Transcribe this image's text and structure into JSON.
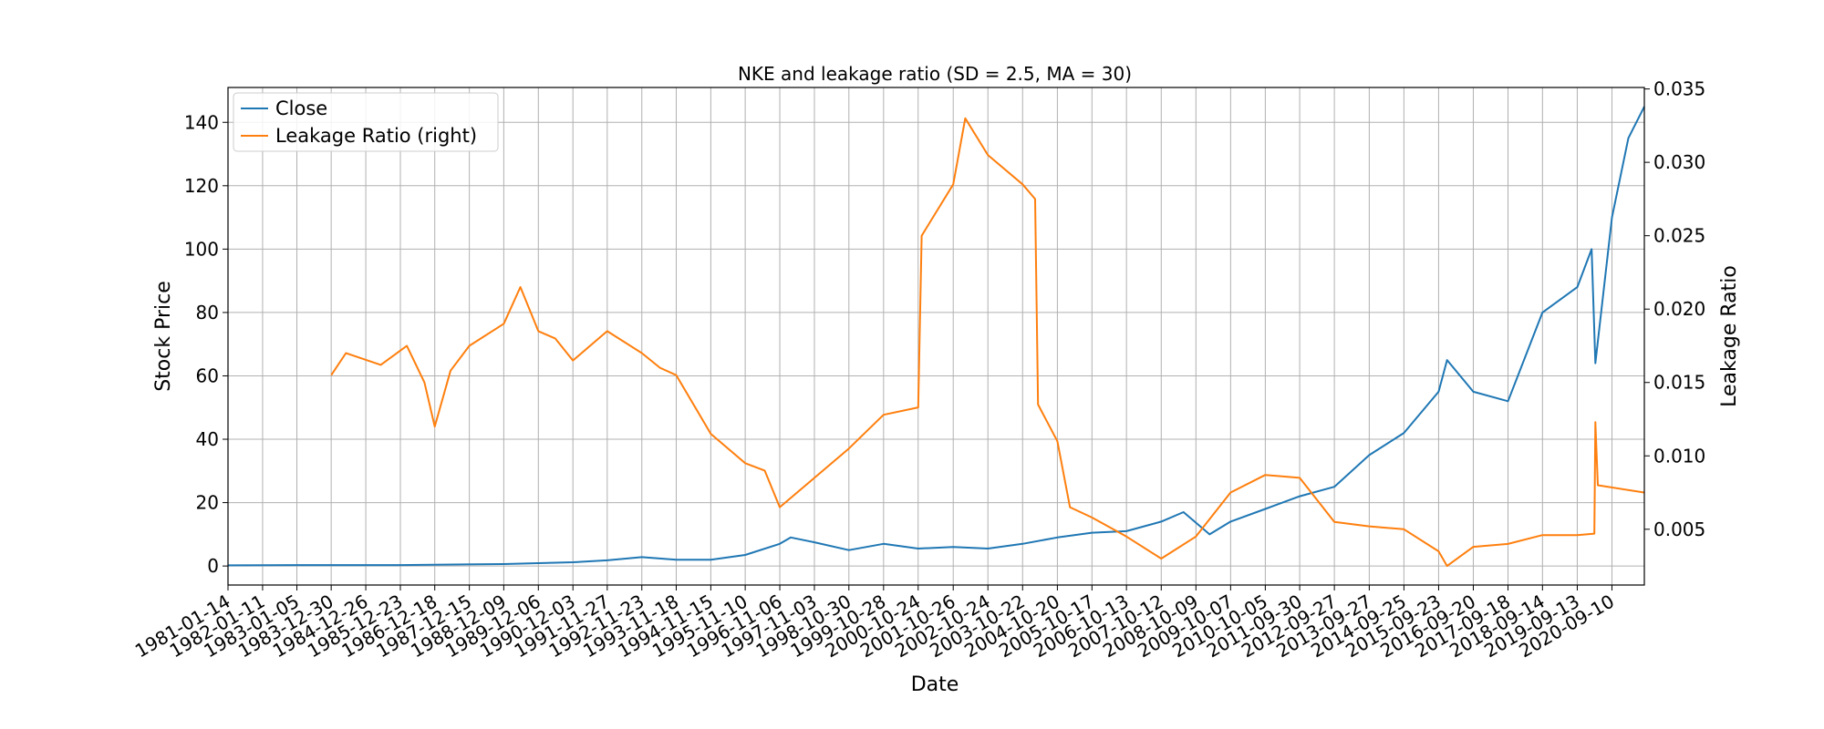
{
  "chart_data": {
    "type": "line",
    "title": "NKE and leakage ratio (SD = 2.5, MA = 30)",
    "xlabel": "Date",
    "ylabel": "Stock Price",
    "ylabel_right": "Leakage Ratio",
    "x_ticks": [
      "1981-01-14",
      "1982-01-11",
      "1983-01-05",
      "1983-12-30",
      "1984-12-26",
      "1985-12-23",
      "1986-12-18",
      "1987-12-15",
      "1988-12-09",
      "1989-12-06",
      "1990-12-03",
      "1991-11-27",
      "1992-11-23",
      "1993-11-18",
      "1994-11-15",
      "1995-11-10",
      "1996-11-06",
      "1997-11-03",
      "1998-10-30",
      "1999-10-28",
      "2000-10-24",
      "2001-10-26",
      "2002-10-24",
      "2003-10-22",
      "2004-10-20",
      "2005-10-17",
      "2006-10-13",
      "2007-10-12",
      "2008-10-09",
      "2009-10-07",
      "2010-10-05",
      "2011-09-30",
      "2012-09-27",
      "2013-09-27",
      "2014-09-25",
      "2015-09-23",
      "2016-09-20",
      "2017-09-18",
      "2018-09-14",
      "2019-09-13",
      "2020-09-10"
    ],
    "xlim": [
      "1981-01-14",
      "2021-08-15"
    ],
    "ylim": [
      -6,
      151
    ],
    "yticks": [
      0,
      20,
      40,
      60,
      80,
      100,
      120,
      140
    ],
    "ylim_right": [
      0.0012,
      0.0351
    ],
    "yticks_right": [
      "0.005",
      "0.010",
      "0.015",
      "0.020",
      "0.025",
      "0.030",
      "0.035"
    ],
    "grid": true,
    "legend_position": "upper-left",
    "series": [
      {
        "name": "Close",
        "axis": "left",
        "color": "#1f77b4",
        "points": [
          [
            "1981-01-14",
            0.2
          ],
          [
            "1983-01-05",
            0.3
          ],
          [
            "1985-12-23",
            0.3
          ],
          [
            "1988-12-09",
            0.6
          ],
          [
            "1990-12-03",
            1.2
          ],
          [
            "1991-11-27",
            1.8
          ],
          [
            "1992-11-23",
            2.8
          ],
          [
            "1993-11-18",
            2.0
          ],
          [
            "1994-11-15",
            2.0
          ],
          [
            "1995-11-10",
            3.5
          ],
          [
            "1996-11-06",
            7.0
          ],
          [
            "1997-03-01",
            9.0
          ],
          [
            "1997-11-03",
            7.5
          ],
          [
            "1998-10-30",
            5.0
          ],
          [
            "1999-10-28",
            7.0
          ],
          [
            "2000-10-24",
            5.5
          ],
          [
            "2001-10-26",
            6.0
          ],
          [
            "2002-10-24",
            5.5
          ],
          [
            "2003-10-22",
            7.0
          ],
          [
            "2004-10-20",
            9.0
          ],
          [
            "2005-10-17",
            10.5
          ],
          [
            "2006-10-13",
            11.0
          ],
          [
            "2007-10-12",
            14.0
          ],
          [
            "2008-06-01",
            17.0
          ],
          [
            "2009-03-01",
            10.0
          ],
          [
            "2009-10-07",
            14.0
          ],
          [
            "2010-10-05",
            18.0
          ],
          [
            "2011-09-30",
            22.0
          ],
          [
            "2012-09-27",
            25.0
          ],
          [
            "2013-09-27",
            35.0
          ],
          [
            "2014-09-25",
            42.0
          ],
          [
            "2015-09-23",
            55.0
          ],
          [
            "2015-12-20",
            65.0
          ],
          [
            "2016-09-20",
            55.0
          ],
          [
            "2017-09-18",
            52.0
          ],
          [
            "2018-09-14",
            80.0
          ],
          [
            "2019-09-13",
            88.0
          ],
          [
            "2020-02-10",
            100.0
          ],
          [
            "2020-03-20",
            64.0
          ],
          [
            "2020-09-10",
            110.0
          ],
          [
            "2021-03-01",
            135.0
          ],
          [
            "2021-08-15",
            145.0
          ]
        ]
      },
      {
        "name": "Leakage Ratio (right)",
        "axis": "right",
        "color": "#ff7f0e",
        "points": [
          [
            "1983-12-30",
            0.0155
          ],
          [
            "1984-06-01",
            0.017
          ],
          [
            "1985-06-01",
            0.0162
          ],
          [
            "1986-03-01",
            0.0175
          ],
          [
            "1986-09-01",
            0.015
          ],
          [
            "1986-12-18",
            0.012
          ],
          [
            "1987-06-01",
            0.0158
          ],
          [
            "1987-12-15",
            0.0175
          ],
          [
            "1988-12-09",
            0.019
          ],
          [
            "1989-06-01",
            0.0215
          ],
          [
            "1989-12-06",
            0.0185
          ],
          [
            "1990-06-01",
            0.018
          ],
          [
            "1990-12-03",
            0.0165
          ],
          [
            "1991-11-27",
            0.0185
          ],
          [
            "1992-11-23",
            0.017
          ],
          [
            "1993-06-01",
            0.016
          ],
          [
            "1993-11-18",
            0.0155
          ],
          [
            "1994-11-15",
            0.0115
          ],
          [
            "1995-11-10",
            0.0095
          ],
          [
            "1996-06-01",
            0.009
          ],
          [
            "1996-11-06",
            0.0065
          ],
          [
            "1997-11-03",
            0.0085
          ],
          [
            "1998-10-30",
            0.0105
          ],
          [
            "1999-10-28",
            0.0128
          ],
          [
            "2000-10-24",
            0.0133
          ],
          [
            "2000-11-30",
            0.025
          ],
          [
            "2001-10-26",
            0.0285
          ],
          [
            "2002-03-01",
            0.033
          ],
          [
            "2002-10-24",
            0.0305
          ],
          [
            "2003-10-22",
            0.0285
          ],
          [
            "2004-03-01",
            0.0275
          ],
          [
            "2004-04-01",
            0.0135
          ],
          [
            "2004-10-20",
            0.011
          ],
          [
            "2005-03-01",
            0.0065
          ],
          [
            "2005-10-17",
            0.0058
          ],
          [
            "2006-10-13",
            0.0045
          ],
          [
            "2007-10-12",
            0.003
          ],
          [
            "2008-10-09",
            0.0045
          ],
          [
            "2009-10-07",
            0.0075
          ],
          [
            "2010-10-05",
            0.0087
          ],
          [
            "2011-09-30",
            0.0085
          ],
          [
            "2012-09-27",
            0.0055
          ],
          [
            "2013-09-27",
            0.0052
          ],
          [
            "2014-09-25",
            0.005
          ],
          [
            "2015-09-23",
            0.0035
          ],
          [
            "2015-12-20",
            0.0025
          ],
          [
            "2016-09-20",
            0.0038
          ],
          [
            "2017-09-18",
            0.004
          ],
          [
            "2018-09-14",
            0.0046
          ],
          [
            "2019-09-13",
            0.0046
          ],
          [
            "2020-03-10",
            0.0047
          ],
          [
            "2020-03-20",
            0.0123
          ],
          [
            "2020-04-15",
            0.008
          ],
          [
            "2021-08-15",
            0.0075
          ]
        ]
      }
    ]
  }
}
